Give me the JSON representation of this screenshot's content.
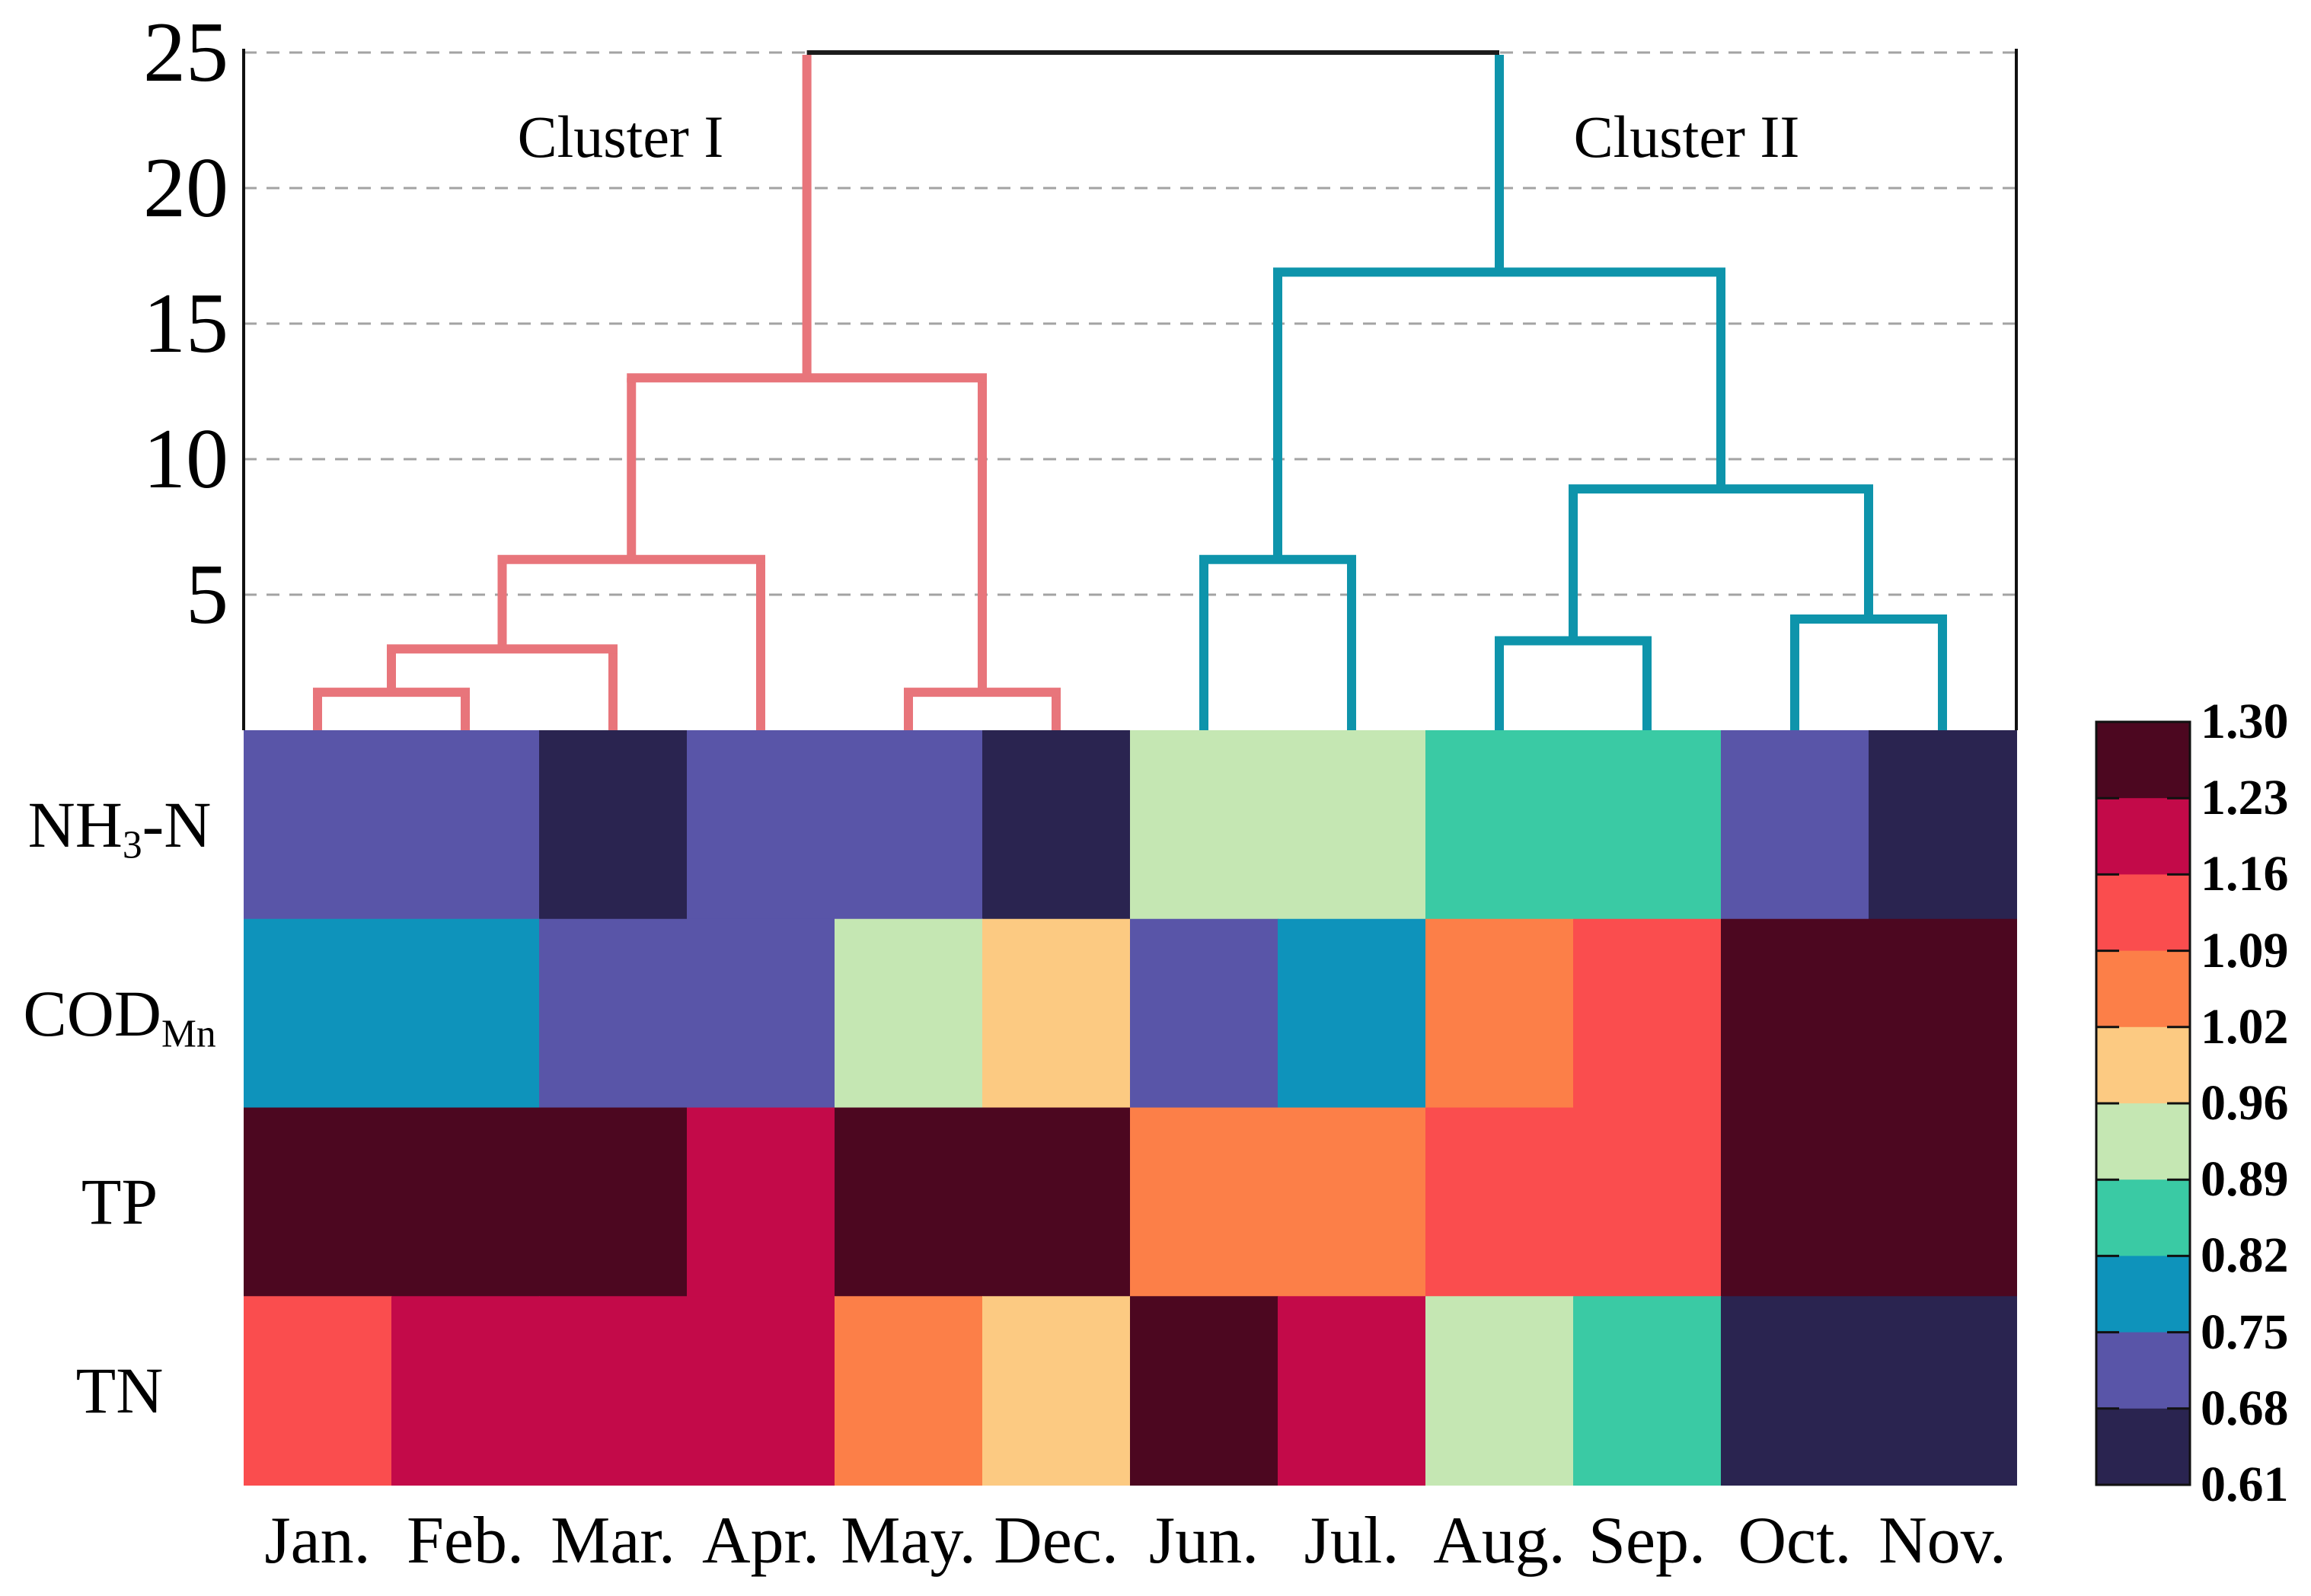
{
  "figure": {
    "kind": "agglomerative-clustering dendrogram with parameter heatmap",
    "background": "#ffffff"
  },
  "chart_data": {
    "type": "heatmap",
    "columns": [
      "Jan.",
      "Feb.",
      "Mar.",
      "Apr.",
      "May.",
      "Dec.",
      "Jun.",
      "Jul.",
      "Aug.",
      "Sep.",
      "Oct.",
      "Nov."
    ],
    "rows": [
      {
        "label": "NH3-N",
        "label_main": "NH",
        "label_sub": "3",
        "label_tail": "-N",
        "values": [
          0.715,
          0.715,
          0.645,
          0.715,
          0.715,
          0.645,
          0.925,
          0.925,
          0.855,
          0.855,
          0.715,
          0.645
        ]
      },
      {
        "label": "CODMn",
        "label_main": "COD",
        "label_sub": "Mn",
        "label_tail": "",
        "values": [
          0.785,
          0.785,
          0.715,
          0.715,
          0.925,
          0.99,
          0.715,
          0.785,
          1.055,
          1.125,
          1.265,
          1.265
        ]
      },
      {
        "label": "TP",
        "label_main": "TP",
        "label_sub": "",
        "label_tail": "",
        "values": [
          1.265,
          1.265,
          1.265,
          1.195,
          1.265,
          1.265,
          1.055,
          1.055,
          1.125,
          1.125,
          1.265,
          1.265
        ]
      },
      {
        "label": "TN",
        "label_main": "TN",
        "label_sub": "",
        "label_tail": "",
        "values": [
          1.125,
          1.195,
          1.195,
          1.195,
          1.055,
          0.99,
          1.265,
          1.195,
          0.925,
          0.855,
          0.645,
          0.645
        ]
      }
    ],
    "value_bins": {
      "min": 0.61,
      "max": 1.3,
      "thresholds": [
        0.61,
        0.68,
        0.75,
        0.82,
        0.89,
        0.96,
        1.02,
        1.09,
        1.16,
        1.23,
        1.3
      ]
    },
    "colorbar": {
      "tick_labels": [
        "1.30",
        "1.23",
        "1.16",
        "1.09",
        "1.02",
        "0.96",
        "0.89",
        "0.82",
        "0.75",
        "0.68",
        "0.61"
      ],
      "bin_colors_low_to_high": [
        "#2a2450",
        "#5955a8",
        "#0e93bb",
        "#3acaa4",
        "#c5e7b3",
        "#fcca82",
        "#fc7f48",
        "#fa4d4e",
        "#c30a49",
        "#4c0720"
      ]
    },
    "dendrogram": {
      "y_axis": {
        "ticks": [
          25,
          20,
          15,
          10,
          5
        ],
        "max": 25
      },
      "gridline_color": "#a3a3a3",
      "axis_color": "#111111",
      "root_link_color": "#1c1c1c",
      "clusters": [
        {
          "name": "Cluster I",
          "color": "#e8757b"
        },
        {
          "name": "Cluster II",
          "color": "#0e94ab"
        }
      ],
      "merges": [
        {
          "id": "I1",
          "a": "Jan.",
          "b": "Feb.",
          "h": 1.4,
          "cluster": 0
        },
        {
          "id": "I2",
          "a": "I1",
          "b": "Mar.",
          "h": 3.0,
          "cluster": 0
        },
        {
          "id": "I3",
          "a": "I2",
          "b": "Apr.",
          "h": 6.3,
          "cluster": 0
        },
        {
          "id": "I4",
          "a": "May.",
          "b": "Dec.",
          "h": 1.4,
          "cluster": 0
        },
        {
          "id": "I5",
          "a": "I3",
          "b": "I4",
          "h": 13.0,
          "cluster": 0
        },
        {
          "id": "II1",
          "a": "Jun.",
          "b": "Jul.",
          "h": 6.3,
          "cluster": 1
        },
        {
          "id": "II2",
          "a": "Aug.",
          "b": "Sep.",
          "h": 3.3,
          "cluster": 1
        },
        {
          "id": "II3",
          "a": "Oct.",
          "b": "Nov.",
          "h": 4.1,
          "cluster": 1
        },
        {
          "id": "II4",
          "a": "II2",
          "b": "II3",
          "h": 8.9,
          "cluster": 1
        },
        {
          "id": "II5",
          "a": "II1",
          "b": "II4",
          "h": 16.9,
          "cluster": 1
        },
        {
          "id": "ROOT",
          "a": "I5",
          "b": "II5",
          "h": 25.0,
          "cluster": -1
        }
      ]
    }
  }
}
